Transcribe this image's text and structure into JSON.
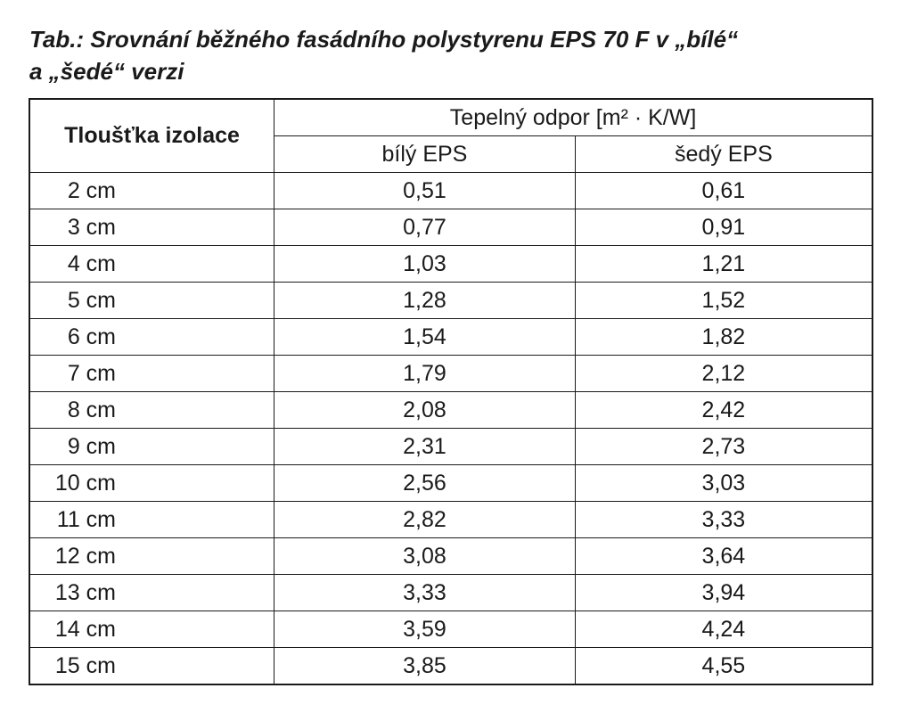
{
  "title": [
    "Tab.: Srovnání běžného fasádního polystyrenu EPS 70 F v „bílé“",
    "a „šedé“ verzi"
  ],
  "table": {
    "header": {
      "col1": "Tloušťka izolace",
      "group": "Tepelný odpor [m² · K/W]",
      "sub": [
        "bílý EPS",
        "šedý EPS"
      ]
    },
    "rows": [
      [
        "2 cm",
        "0,51",
        "0,61"
      ],
      [
        "3 cm",
        "0,77",
        "0,91"
      ],
      [
        "4 cm",
        "1,03",
        "1,21"
      ],
      [
        "5 cm",
        "1,28",
        "1,52"
      ],
      [
        "6 cm",
        "1,54",
        "1,82"
      ],
      [
        "7 cm",
        "1,79",
        "2,12"
      ],
      [
        "8 cm",
        "2,08",
        "2,42"
      ],
      [
        "9 cm",
        "2,31",
        "2,73"
      ],
      [
        "10 cm",
        "2,56",
        "3,03"
      ],
      [
        "11 cm",
        "2,82",
        "3,33"
      ],
      [
        "12 cm",
        "3,08",
        "3,64"
      ],
      [
        "13 cm",
        "3,33",
        "3,94"
      ],
      [
        "14 cm",
        "3,59",
        "4,24"
      ],
      [
        "15 cm",
        "3,85",
        "4,55"
      ]
    ]
  }
}
